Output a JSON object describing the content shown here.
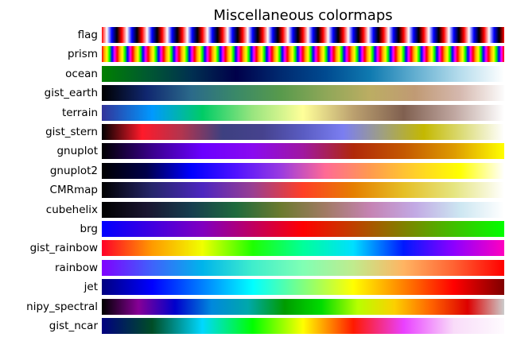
{
  "title": "Miscellaneous colormaps",
  "colormaps": [
    {
      "name": "flag",
      "repeat_count": 20,
      "stops": [
        "#ff0000",
        "#ffffff",
        "#0000ff",
        "#000000",
        "#ff0000"
      ]
    },
    {
      "name": "prism",
      "repeat_count": 26,
      "stops": [
        "#ff0000",
        "#ffaa00",
        "#ffff00",
        "#00ff00",
        "#0000ff",
        "#ff00ff",
        "#ff0000"
      ]
    },
    {
      "name": "ocean",
      "stops": [
        "#008000",
        "#005a30",
        "#003050",
        "#00004a",
        "#002a70",
        "#004a90",
        "#0f7ab0",
        "#62aed0",
        "#b5dcec",
        "#ffffff"
      ]
    },
    {
      "name": "gist_earth",
      "stops": [
        "#000000",
        "#102770",
        "#2b6a8a",
        "#3a8968",
        "#589a4c",
        "#8ea758",
        "#bcad63",
        "#c09a74",
        "#d5b8ae",
        "#fcfcfc"
      ]
    },
    {
      "name": "terrain",
      "stops": [
        "#333399",
        "#0099ff",
        "#00cc66",
        "#99e57f",
        "#ffff99",
        "#bba06f",
        "#806050",
        "#bfa6a0",
        "#ffffff"
      ]
    },
    {
      "name": "gist_stern",
      "stops": [
        "#000000",
        "#ff1a2a",
        "#b0354f",
        "#3d4080",
        "#46428e",
        "#5a5cc2",
        "#7b7ef1",
        "#a0a07e",
        "#c4b800",
        "#dddd7e",
        "#ffffff"
      ]
    },
    {
      "name": "gnuplot",
      "stops": [
        "#000000",
        "#3a008c",
        "#6a00ff",
        "#8a0af0",
        "#a018a0",
        "#b0280a",
        "#c45800",
        "#dd9a00",
        "#ffff00"
      ]
    },
    {
      "name": "gnuplot2",
      "stops": [
        "#000000",
        "#00004a",
        "#0000ff",
        "#5012ff",
        "#9a3be0",
        "#ff6a95",
        "#ff9a4f",
        "#ffcf2a",
        "#ffff00",
        "#ffffff"
      ]
    },
    {
      "name": "CMRmap",
      "stops": [
        "#000000",
        "#26266a",
        "#4c26c0",
        "#993f92",
        "#ff3f26",
        "#e57f00",
        "#e5bf26",
        "#e5e580",
        "#ffffff"
      ]
    },
    {
      "name": "cubehelix",
      "stops": [
        "#000000",
        "#1a1530",
        "#163d4e",
        "#1f6a3d",
        "#6b7a2e",
        "#a17a64",
        "#c583b3",
        "#c2a9e4",
        "#cce6f1",
        "#ffffff"
      ]
    },
    {
      "name": "brg",
      "stops": [
        "#0000ff",
        "#8000c0",
        "#ff0000",
        "#808000",
        "#00ff00"
      ]
    },
    {
      "name": "gist_rainbow",
      "stops": [
        "#ff0029",
        "#ff9a00",
        "#f0ff00",
        "#1fff00",
        "#00ff9a",
        "#00dfff",
        "#0018ff",
        "#8d00ff",
        "#ff00bf"
      ]
    },
    {
      "name": "rainbow",
      "stops": [
        "#8000ff",
        "#3f62fb",
        "#00b4eb",
        "#3feecc",
        "#80ffb4",
        "#c0eb8d",
        "#ffb462",
        "#ff6232",
        "#ff0000"
      ]
    },
    {
      "name": "jet",
      "stops": [
        "#000080",
        "#0000ff",
        "#0080ff",
        "#00ffff",
        "#80ff80",
        "#ffff00",
        "#ff8000",
        "#ff0000",
        "#800000"
      ]
    },
    {
      "name": "nipy_spectral",
      "stops": [
        "#000000",
        "#860096",
        "#0000cc",
        "#0088dd",
        "#00a8aa",
        "#009c00",
        "#00dc00",
        "#b8ff00",
        "#fcd000",
        "#ff6300",
        "#dd0000",
        "#cccccc"
      ]
    },
    {
      "name": "gist_ncar",
      "stops": [
        "#000080",
        "#004d26",
        "#00d8ff",
        "#00ff00",
        "#ffff00",
        "#ff1a00",
        "#e940ff",
        "#f9dcf9",
        "#fefbfe"
      ]
    }
  ]
}
